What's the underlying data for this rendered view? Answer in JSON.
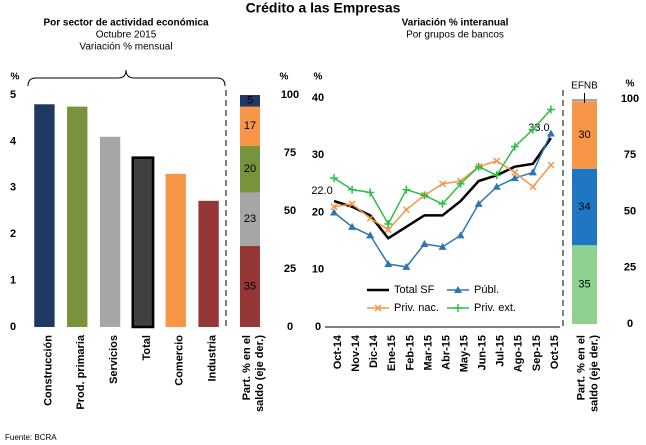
{
  "title": "Crédito a las Empresas",
  "source": "Fuente: BCRA",
  "chart_data": [
    {
      "type": "bar",
      "title": "Por sector de actividad económica",
      "subtitle": [
        "Octubre 2015",
        "Variación % mensual"
      ],
      "y_label": "%",
      "y2_label": "%",
      "categories": [
        "Construcción",
        "Prod. primaria",
        "Servicios",
        "Total",
        "Comercio",
        "Industria"
      ],
      "values": [
        4.8,
        4.75,
        4.1,
        3.65,
        3.3,
        2.72
      ],
      "colors": [
        "#1f3864",
        "#77933c",
        "#a6a6a6",
        "#404040",
        "#f79646",
        "#953735"
      ],
      "outlined": [
        false,
        false,
        false,
        true,
        false,
        false
      ],
      "ylim": [
        0,
        5
      ],
      "yticks": [
        0,
        1,
        2,
        3,
        4,
        5
      ],
      "y2lim": [
        0,
        100
      ],
      "y2ticks": [
        0,
        25,
        50,
        75,
        100
      ],
      "stack": {
        "label": [
          "Part. % en el",
          "saldo (eje der.)"
        ],
        "axis": "y2",
        "values": [
          35,
          23,
          20,
          17,
          5
        ],
        "colors": [
          "#953735",
          "#a6a6a6",
          "#77933c",
          "#f79646",
          "#1f3864"
        ],
        "label_color": "#ffffff"
      }
    },
    {
      "type": "line",
      "title": "Variación % interanual",
      "subtitle": [
        "Por grupos de bancos"
      ],
      "y_label": "%",
      "y2_label": "%",
      "categories": [
        "Oct-14",
        "Nov-14",
        "Dic-14",
        "Ene-15",
        "Feb-15",
        "Mar-15",
        "Abr-15",
        "May-15",
        "Jun-15",
        "Jul-15",
        "Ago-15",
        "Sep-15",
        "Oct-15"
      ],
      "ylim": [
        0,
        40
      ],
      "yticks": [
        0,
        10,
        20,
        30,
        40
      ],
      "y2lim": [
        0,
        100
      ],
      "y2ticks": [
        0,
        25,
        50,
        75,
        100
      ],
      "series": [
        {
          "name": "Total SF",
          "color": "#000000",
          "marker": "none",
          "values": [
            22,
            21,
            19.5,
            15.5,
            17.5,
            19.5,
            19.5,
            22,
            25.5,
            26.5,
            28,
            28.5,
            33
          ],
          "value_labels": [
            "22.0",
            null,
            null,
            null,
            null,
            null,
            null,
            null,
            null,
            null,
            null,
            null,
            "33.0"
          ]
        },
        {
          "name": "Públ.",
          "color": "#2e75b6",
          "marker": "triangle",
          "values": [
            20,
            17.5,
            16,
            11,
            10.5,
            14.5,
            14,
            16,
            21.5,
            24.5,
            26,
            27,
            33.8
          ]
        },
        {
          "name": "Priv. nac.",
          "color": "#f79646",
          "marker": "x",
          "values": [
            21,
            21.5,
            19,
            17,
            20.5,
            23,
            25,
            25.5,
            28,
            29,
            27,
            24.5,
            28.3
          ]
        },
        {
          "name": "Priv. ext.",
          "color": "#2ebd4a",
          "marker": "plus",
          "values": [
            26,
            24,
            23.5,
            18,
            24,
            23,
            21.5,
            25,
            28,
            26.5,
            31.5,
            34.5,
            38
          ]
        }
      ],
      "stack": {
        "label": [
          "Part. % en el",
          "saldo (eje der.)"
        ],
        "axis": "y2",
        "top_label": "EFNB",
        "values": [
          35,
          34,
          30,
          1
        ],
        "colors": [
          "#8fd18f",
          "#1f77c4",
          "#f79646",
          "#a6a6a6"
        ],
        "label_color": "#1f3864"
      }
    }
  ]
}
